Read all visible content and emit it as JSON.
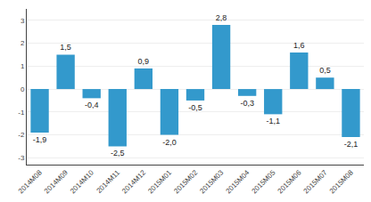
{
  "chart_data": {
    "type": "bar",
    "categories": [
      "2014M08",
      "2014M09",
      "2014M10",
      "2014M11",
      "2014M12",
      "2015M01",
      "2015M02",
      "2015M03",
      "2015M04",
      "2015M05",
      "2015M06",
      "2015M07",
      "2015M08"
    ],
    "values": [
      -1.9,
      1.5,
      -0.4,
      -2.5,
      0.9,
      -2.0,
      -0.5,
      2.8,
      -0.3,
      -1.1,
      1.6,
      0.5,
      -2.1
    ],
    "value_labels": [
      "-1,9",
      "1,5",
      "-0,4",
      "-2,5",
      "0,9",
      "-2,0",
      "-0,5",
      "2,8",
      "-0,3",
      "-1,1",
      "1,6",
      "0,5",
      "-2,1"
    ],
    "color": "#3399CC",
    "ylim": [
      -3.3,
      3.5
    ],
    "yticks": [
      -3,
      -2,
      -1,
      0,
      1,
      2,
      3
    ],
    "grid": true,
    "data_labels": true
  }
}
